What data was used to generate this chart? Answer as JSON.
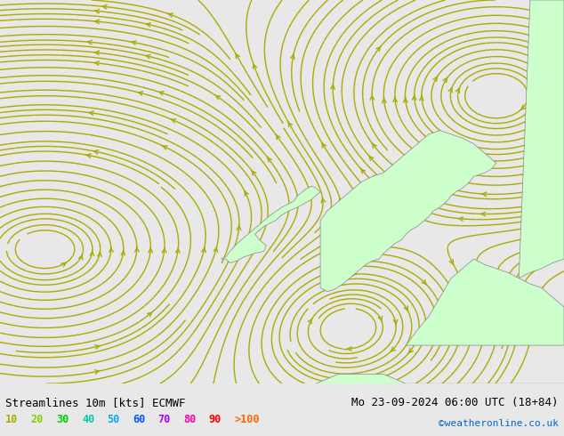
{
  "title_left": "Streamlines 10m [kts] ECMWF",
  "title_right": "Mo 23-09-2024 06:00 UTC (18+84)",
  "credit": "©weatheronline.co.uk",
  "legend_values": [
    "10",
    "20",
    "30",
    "40",
    "50",
    "60",
    "70",
    "80",
    "90",
    ">100"
  ],
  "legend_colors": [
    "#aaaa00",
    "#88cc00",
    "#00cc00",
    "#00ccaa",
    "#00aaff",
    "#0055ff",
    "#aa00ff",
    "#ff00aa",
    "#ff0000",
    "#ff6600"
  ],
  "bg_color": "#e8e8e8",
  "land_color": "#ccffcc",
  "sea_color": "#e0e0e0",
  "streamline_colors": [
    "#aaaa00",
    "#88cc00",
    "#00cc00",
    "#00ff00",
    "#00ffaa"
  ],
  "figsize": [
    6.34,
    4.9
  ],
  "dpi": 100,
  "lon_min": -20,
  "lon_max": 5,
  "lat_min": 45,
  "lat_max": 65
}
